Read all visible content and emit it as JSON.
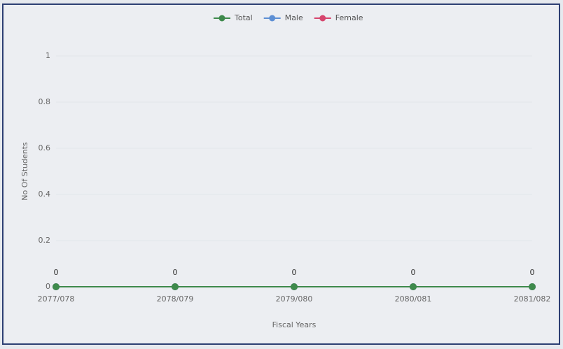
{
  "chart_data": {
    "type": "line",
    "categories": [
      "2077/078",
      "2078/079",
      "2079/080",
      "2080/081",
      "2081/082"
    ],
    "series": [
      {
        "name": "Total",
        "color": "#3e8a4c",
        "values": [
          0,
          0,
          0,
          0,
          0
        ]
      },
      {
        "name": "Male",
        "color": "#5d8fd4",
        "values": [
          0,
          0,
          0,
          0,
          0
        ]
      },
      {
        "name": "Female",
        "color": "#d6456d",
        "values": [
          0,
          0,
          0,
          0,
          0
        ]
      }
    ],
    "ylim": [
      0,
      1
    ],
    "yticks": [
      0,
      0.2,
      0.4,
      0.6,
      0.8,
      1
    ],
    "y_label": "No Of Students",
    "x_label": "Fiscal Years",
    "legend": "top"
  }
}
